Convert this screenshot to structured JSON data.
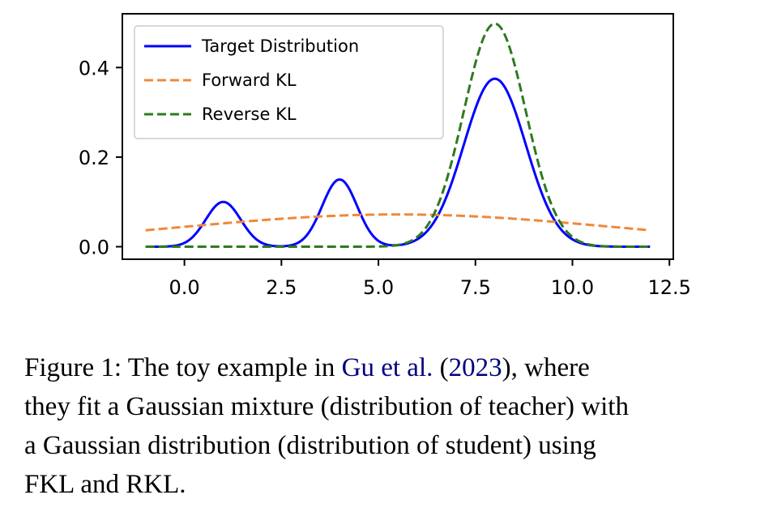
{
  "colors": {
    "target": "#0000ff",
    "forward": "#f0883a",
    "reverse": "#2e7a1f",
    "citation": "#00007f"
  },
  "chart_data": {
    "type": "line",
    "xlim": [
      -1.6,
      12.6
    ],
    "ylim": [
      -0.028,
      0.52
    ],
    "x_range": [
      -1,
      12
    ],
    "xticks": [
      0.0,
      2.5,
      5.0,
      7.5,
      10.0,
      12.5
    ],
    "xtick_labels": [
      "0.0",
      "2.5",
      "5.0",
      "7.5",
      "10.0",
      "12.5"
    ],
    "yticks": [
      0.0,
      0.2,
      0.4
    ],
    "ytick_labels": [
      "0.0",
      "0.2",
      "0.4"
    ],
    "grid": false,
    "legend_position": "top-left",
    "series": [
      {
        "name": "Target Distribution",
        "style": "solid",
        "color": "#0000ff",
        "components": [
          {
            "mean": 1.0,
            "sd": 0.45,
            "peak": 0.1
          },
          {
            "mean": 4.0,
            "sd": 0.45,
            "peak": 0.15
          },
          {
            "mean": 8.0,
            "sd": 0.8,
            "peak": 0.375
          }
        ]
      },
      {
        "name": "Forward KL",
        "style": "dashed",
        "color": "#f0883a",
        "components": [
          {
            "mean": 5.5,
            "sd": 5.6,
            "peak": 0.072
          }
        ]
      },
      {
        "name": "Reverse KL",
        "style": "dashed",
        "color": "#2e7a1f",
        "components": [
          {
            "mean": 8.0,
            "sd": 0.8,
            "peak": 0.498
          }
        ]
      }
    ]
  },
  "caption": {
    "line1_a": "Figure 1: The toy example in ",
    "line1_cite": "Gu et al.",
    "line1_b": " (",
    "line1_year": "2023",
    "line1_c": "), where",
    "line2": "they fit a Gaussian mixture (distribution of teacher) with",
    "line3": "a Gaussian distribution (distribution of student) using",
    "line4": "FKL and RKL."
  }
}
